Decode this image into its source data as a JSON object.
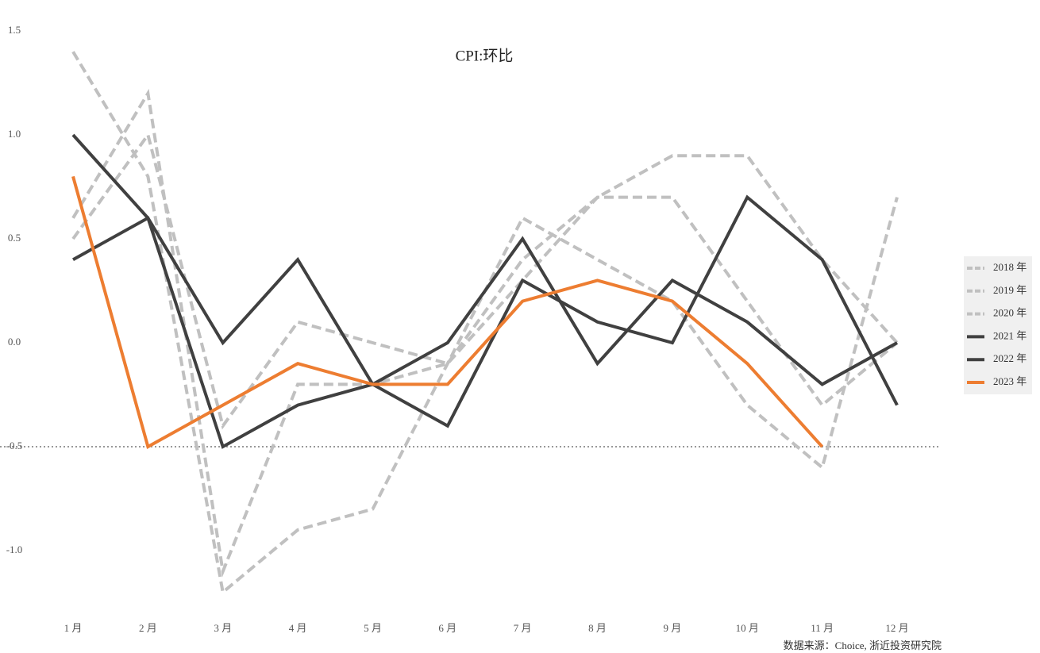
{
  "chart_data": {
    "type": "line",
    "title": "CPI:环比",
    "source": "数据来源：Choice, 浙近投资研究院",
    "categories": [
      "1 月",
      "2 月",
      "3 月",
      "4 月",
      "5 月",
      "6 月",
      "7 月",
      "8 月",
      "9 月",
      "10 月",
      "11 月",
      "12 月"
    ],
    "series": [
      {
        "name": "2018 年",
        "color": "#c0c0c0",
        "dashed": true,
        "values": [
          0.6,
          1.2,
          -1.1,
          -0.2,
          -0.2,
          -0.1,
          0.3,
          0.7,
          0.7,
          0.2,
          -0.3,
          0.0
        ]
      },
      {
        "name": "2019 年",
        "color": "#c0c0c0",
        "dashed": true,
        "values": [
          0.5,
          1.0,
          -0.4,
          0.1,
          0.0,
          -0.1,
          0.4,
          0.7,
          0.9,
          0.9,
          0.4,
          0.0
        ]
      },
      {
        "name": "2020 年",
        "color": "#c0c0c0",
        "dashed": true,
        "values": [
          1.4,
          0.8,
          -1.2,
          -0.9,
          -0.8,
          -0.1,
          0.6,
          0.4,
          0.2,
          -0.3,
          -0.6,
          0.7
        ]
      },
      {
        "name": "2021 年",
        "color": "#404040",
        "dashed": false,
        "values": [
          1.0,
          0.6,
          -0.5,
          -0.3,
          -0.2,
          -0.4,
          0.3,
          0.1,
          0.0,
          0.7,
          0.4,
          -0.3
        ]
      },
      {
        "name": "2022 年",
        "color": "#404040",
        "dashed": false,
        "values": [
          0.4,
          0.6,
          0.0,
          0.4,
          -0.2,
          0.0,
          0.5,
          -0.1,
          0.3,
          0.1,
          -0.2,
          0.0
        ]
      },
      {
        "name": "2023 年",
        "color": "#ed7d31",
        "dashed": false,
        "values": [
          0.8,
          -0.5,
          -0.3,
          -0.1,
          -0.2,
          -0.2,
          0.2,
          0.3,
          0.2,
          -0.1,
          -0.5,
          null
        ]
      }
    ],
    "hline": -0.5,
    "ylim": [
      -1.3,
      1.5
    ],
    "yticks": [
      1.5,
      {
        "value": 1.0,
        "label": "1.0"
      },
      0.5,
      {
        "value": 0.0,
        "label": "0.0"
      },
      -0.5,
      {
        "value": -1.0,
        "label": "-1.0"
      }
    ],
    "grid": false,
    "legend": "right"
  }
}
